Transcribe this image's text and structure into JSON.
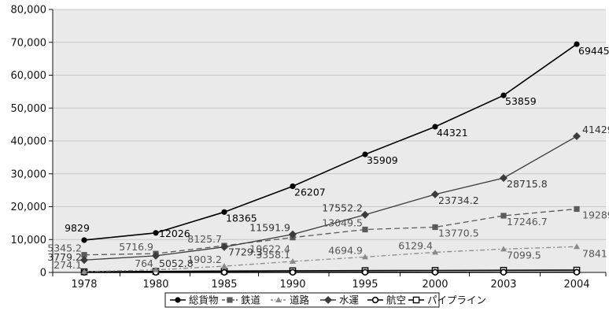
{
  "chart_data": {
    "type": "line",
    "categories": [
      "1978",
      "1980",
      "1985",
      "1990",
      "1995",
      "2000",
      "2003",
      "2004"
    ],
    "ylim": [
      0,
      80000
    ],
    "y_ticks": [
      "0",
      "10,000",
      "20,000",
      "30,000",
      "40,000",
      "50,000",
      "60,000",
      "70,000",
      "80,000"
    ],
    "grid": "horizontal",
    "legend_position": "bottom",
    "background_color": "#eaeaea",
    "series": [
      {
        "name": "総貨物",
        "values": [
          9829,
          12026,
          18365,
          26207,
          35909,
          44321,
          53859,
          69445
        ],
        "labels": [
          "9829",
          "12026",
          "18365",
          "26207",
          "35909",
          "44321",
          "53859",
          "69445"
        ],
        "color": "#000000",
        "dash": "solid",
        "marker": "filled-circle",
        "label_color": "#000000"
      },
      {
        "name": "鉄道",
        "values": [
          5345.2,
          5716.9,
          8125.7,
          10622.4,
          13049.5,
          13770.5,
          17246.7,
          19289
        ],
        "labels": [
          "5345.2",
          "5716.9",
          "8125.7",
          "10622.4",
          "13049.5",
          "13770.5",
          "17246.7",
          "19289"
        ],
        "color": "#5a5a5a",
        "dash": "dashed",
        "marker": "filled-square",
        "label_color": "#555555"
      },
      {
        "name": "道路",
        "values": [
          274.1,
          764,
          1903.2,
          3358.1,
          4694.9,
          6129.4,
          7099.5,
          7841
        ],
        "labels": [
          "274.1",
          "764",
          "1903.2",
          "3358.1",
          "4694.9",
          "6129.4",
          "7099.5",
          "7841"
        ],
        "color": "#8a8a8a",
        "dash": "dash-dot",
        "marker": "filled-triangle",
        "label_color": "#555555"
      },
      {
        "name": "水運",
        "values": [
          3779.2,
          5052.8,
          7729.3,
          11591.9,
          17552.2,
          23734.2,
          28715.8,
          41429
        ],
        "labels": [
          "3779.2",
          "5052.8",
          "7729.3",
          "11591.9",
          "17552.2",
          "23734.2",
          "28715.8",
          "41429"
        ],
        "color": "#3c3c3c",
        "dash": "solid",
        "marker": "filled-diamond",
        "label_color": "#333333"
      },
      {
        "name": "航空",
        "values": [
          10,
          15,
          20,
          30,
          40,
          50,
          60,
          70
        ],
        "labels": [],
        "color": "#000000",
        "dash": "solid",
        "marker": "open-circle",
        "label_color": "#000000"
      },
      {
        "name": "パイプライン",
        "values": [
          200,
          300,
          400,
          500,
          550,
          600,
          650,
          700
        ],
        "labels": [],
        "color": "#000000",
        "dash": "solid",
        "marker": "open-square",
        "label_color": "#000000"
      }
    ]
  }
}
